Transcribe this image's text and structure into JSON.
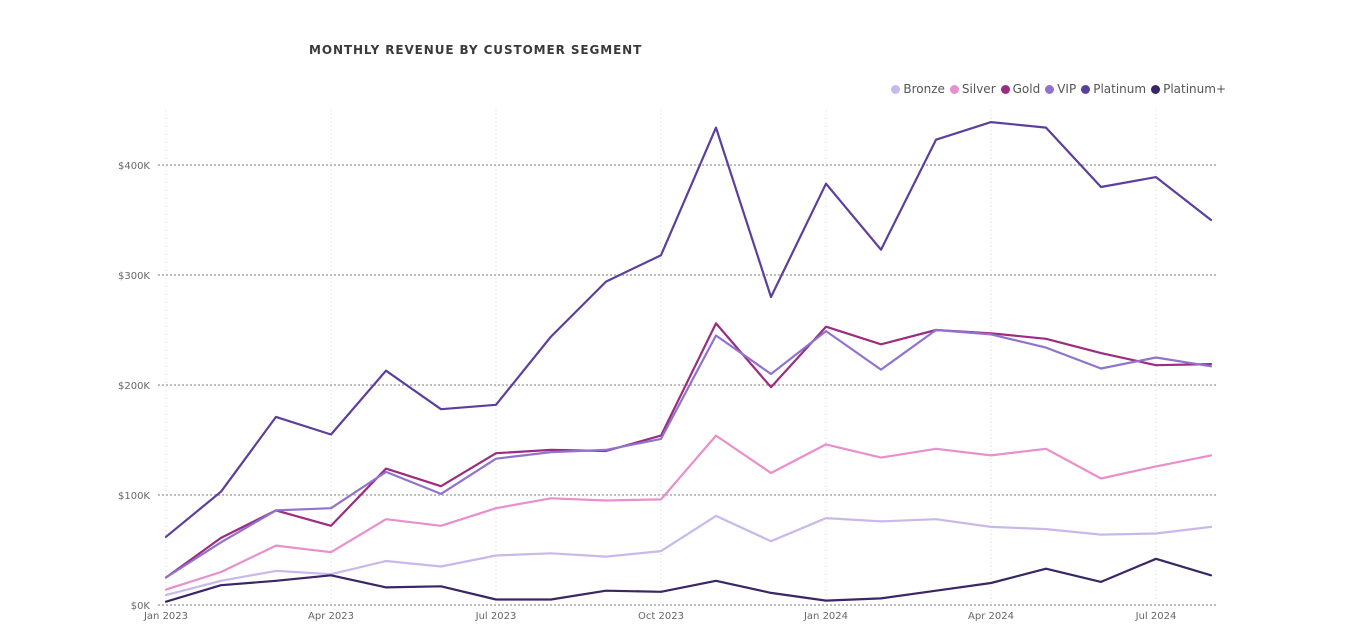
{
  "chart_data": {
    "type": "line",
    "title": "MONTHLY REVENUE BY CUSTOMER SEGMENT",
    "x": [
      "2023-01",
      "2023-02",
      "2023-03",
      "2023-04",
      "2023-05",
      "2023-06",
      "2023-07",
      "2023-08",
      "2023-09",
      "2023-10",
      "2023-11",
      "2023-12",
      "2024-01",
      "2024-02",
      "2024-03",
      "2024-04",
      "2024-05",
      "2024-06",
      "2024-07",
      "2024-08"
    ],
    "x_ticks": [
      {
        "x": "2023-01",
        "label": "Jan 2023"
      },
      {
        "x": "2023-04",
        "label": "Apr 2023"
      },
      {
        "x": "2023-07",
        "label": "Jul 2023"
      },
      {
        "x": "2023-10",
        "label": "Oct 2023"
      },
      {
        "x": "2024-01",
        "label": "Jan 2024"
      },
      {
        "x": "2024-04",
        "label": "Apr 2024"
      },
      {
        "x": "2024-07",
        "label": "Jul 2024"
      }
    ],
    "ylim": [
      0,
      450000
    ],
    "y_ticks": [
      {
        "value": 0,
        "label": "$0K"
      },
      {
        "value": 100000,
        "label": "$100K"
      },
      {
        "value": 200000,
        "label": "$200K"
      },
      {
        "value": 300000,
        "label": "$300K"
      },
      {
        "value": 400000,
        "label": "$400K"
      }
    ],
    "grid": true,
    "legend_position": "top-right",
    "series": [
      {
        "name": "Bronze",
        "color": "#c9b8ea",
        "values": [
          9000,
          22000,
          31000,
          28000,
          40000,
          35000,
          45000,
          47000,
          44000,
          49000,
          81000,
          58000,
          79000,
          76000,
          78000,
          71000,
          69000,
          64000,
          65000,
          71000
        ]
      },
      {
        "name": "Silver",
        "color": "#e88fcc",
        "values": [
          14000,
          30000,
          54000,
          48000,
          78000,
          72000,
          88000,
          97000,
          95000,
          96000,
          154000,
          120000,
          146000,
          134000,
          142000,
          136000,
          142000,
          115000,
          126000,
          136000
        ]
      },
      {
        "name": "Gold",
        "color": "#9b2c7f",
        "values": [
          25000,
          61000,
          86000,
          72000,
          124000,
          108000,
          138000,
          141000,
          140000,
          154000,
          256000,
          198000,
          253000,
          237000,
          250000,
          247000,
          242000,
          229000,
          218000,
          219000
        ]
      },
      {
        "name": "VIP",
        "color": "#8f73cf",
        "values": [
          25000,
          57000,
          86000,
          88000,
          121000,
          101000,
          133000,
          139000,
          141000,
          151000,
          245000,
          210000,
          249000,
          214000,
          250000,
          246000,
          234000,
          215000,
          225000,
          217000
        ]
      },
      {
        "name": "Platinum",
        "color": "#5c3f9c",
        "values": [
          62000,
          103000,
          171000,
          155000,
          213000,
          178000,
          182000,
          244000,
          294000,
          318000,
          434000,
          280000,
          383000,
          323000,
          423000,
          439000,
          434000,
          380000,
          389000,
          350000
        ]
      },
      {
        "name": "Platinum+",
        "color": "#3a2566",
        "values": [
          3000,
          18000,
          22000,
          27000,
          16000,
          17000,
          5000,
          5000,
          13000,
          12000,
          22000,
          11000,
          4000,
          6000,
          13000,
          20000,
          33000,
          21000,
          42000,
          27000
        ]
      }
    ]
  }
}
